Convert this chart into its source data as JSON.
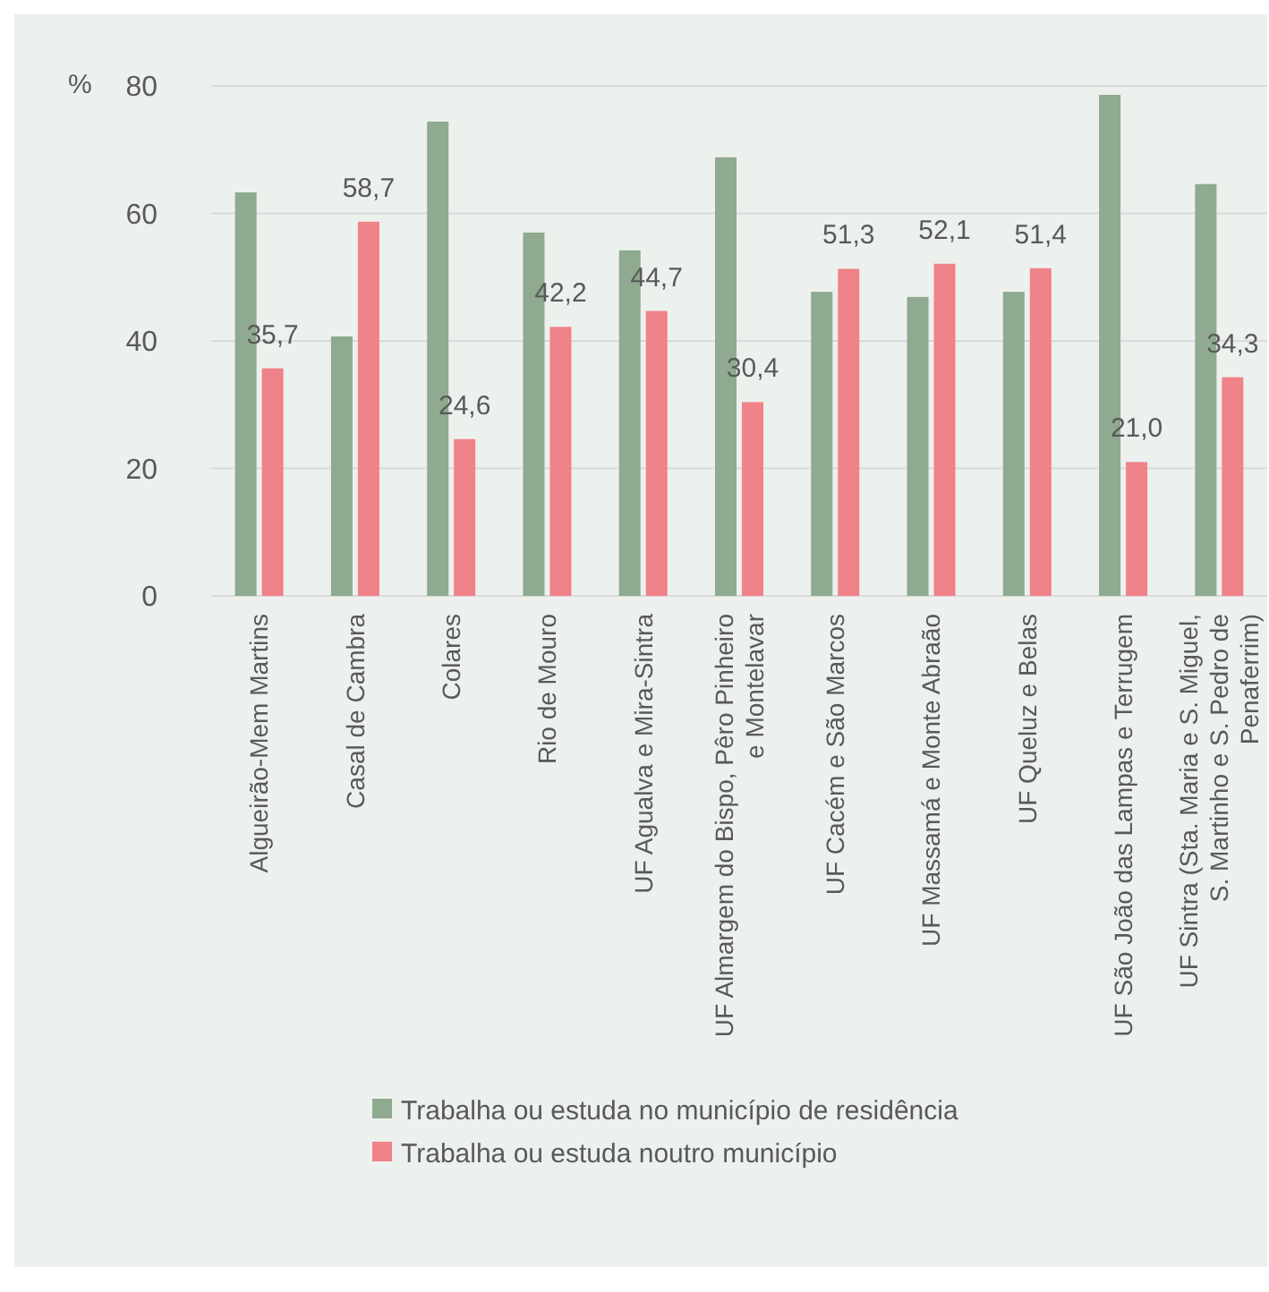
{
  "chart_data": {
    "type": "bar",
    "ylabel": "%",
    "categories": [
      "Algueirão-Mem Martins",
      "Casal de Cambra",
      "Colares",
      "Rio de Mouro",
      "UF Agualva e Mira-Sintra",
      "UF Almargem do Bispo, Pêro Pinheiro e Montelavar",
      "UF Cacém e São Marcos",
      "UF Massamá e Monte Abraão",
      "UF Queluz e Belas",
      "UF São João das Lampas e Terrugem",
      "UF Sintra (Sta. Maria e S. Miguel, S. Martinho e S. Pedro de Penaferrim)"
    ],
    "series": [
      {
        "name": "Trabalha ou estuda no município de residência",
        "color": "#8faa8f",
        "values": [
          63.3,
          40.7,
          74.4,
          57.0,
          54.2,
          68.8,
          47.7,
          46.9,
          47.7,
          78.6,
          64.6
        ]
      },
      {
        "name": "Trabalha ou estuda noutro município",
        "color": "#f08289",
        "values": [
          35.7,
          58.7,
          24.6,
          42.2,
          44.7,
          30.4,
          51.3,
          52.1,
          51.4,
          21.0,
          34.3
        ],
        "value_labels": [
          "35,7",
          "58,7",
          "24,6",
          "42,2",
          "44,7",
          "30,4",
          "51,3",
          "52,1",
          "51,4",
          "21,0",
          "34,3"
        ]
      }
    ],
    "ylim": [
      0,
      80
    ],
    "yticks": [
      0,
      20,
      40,
      60,
      80
    ],
    "grid": "y",
    "legend": "bottom"
  }
}
